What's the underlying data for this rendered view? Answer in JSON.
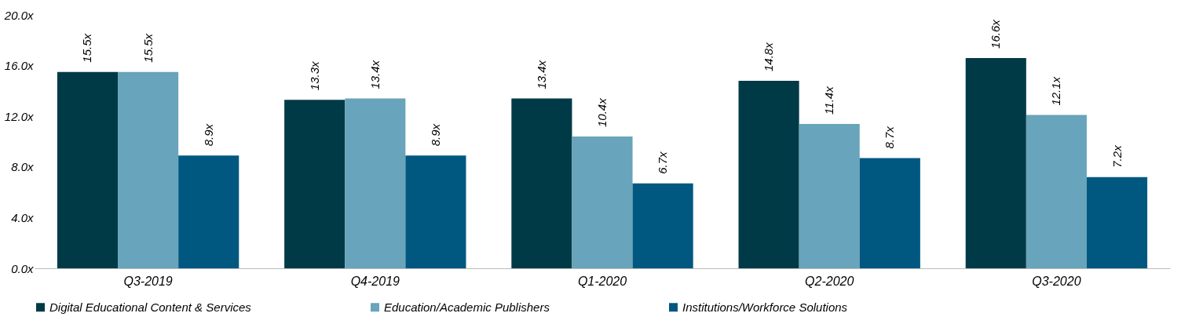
{
  "chart_data": {
    "type": "bar",
    "categories": [
      "Q3-2019",
      "Q4-2019",
      "Q1-2020",
      "Q2-2020",
      "Q3-2020"
    ],
    "series": [
      {
        "name": "Digital Educational Content & Services",
        "color": "#013a47",
        "values": [
          15.5,
          13.3,
          13.4,
          14.8,
          16.6
        ],
        "value_labels": [
          "15.5x",
          "13.3x",
          "13.4x",
          "14.8x",
          "16.6x"
        ]
      },
      {
        "name": "Education/Academic Publishers",
        "color": "#68a4bb",
        "values": [
          15.5,
          13.4,
          10.4,
          11.4,
          12.1
        ],
        "value_labels": [
          "15.5x",
          "13.4x",
          "10.4x",
          "11.4x",
          "12.1x"
        ]
      },
      {
        "name": "Institutions/Workforce Solutions",
        "color": "#005880",
        "values": [
          8.9,
          8.9,
          6.7,
          8.7,
          7.2
        ],
        "value_labels": [
          "8.9x",
          "8.9x",
          "6.7x",
          "8.7x",
          "7.2x"
        ]
      }
    ],
    "ylim": [
      0,
      20
    ],
    "yticks": [
      {
        "value": 0,
        "label": "0.0x"
      },
      {
        "value": 4,
        "label": "4.0x"
      },
      {
        "value": 8,
        "label": "8.0x"
      },
      {
        "value": 12,
        "label": "12.0x"
      },
      {
        "value": 16,
        "label": "16.0x"
      },
      {
        "value": 20,
        "label": "20.0x"
      }
    ],
    "grid": false,
    "legend": "bottom"
  }
}
